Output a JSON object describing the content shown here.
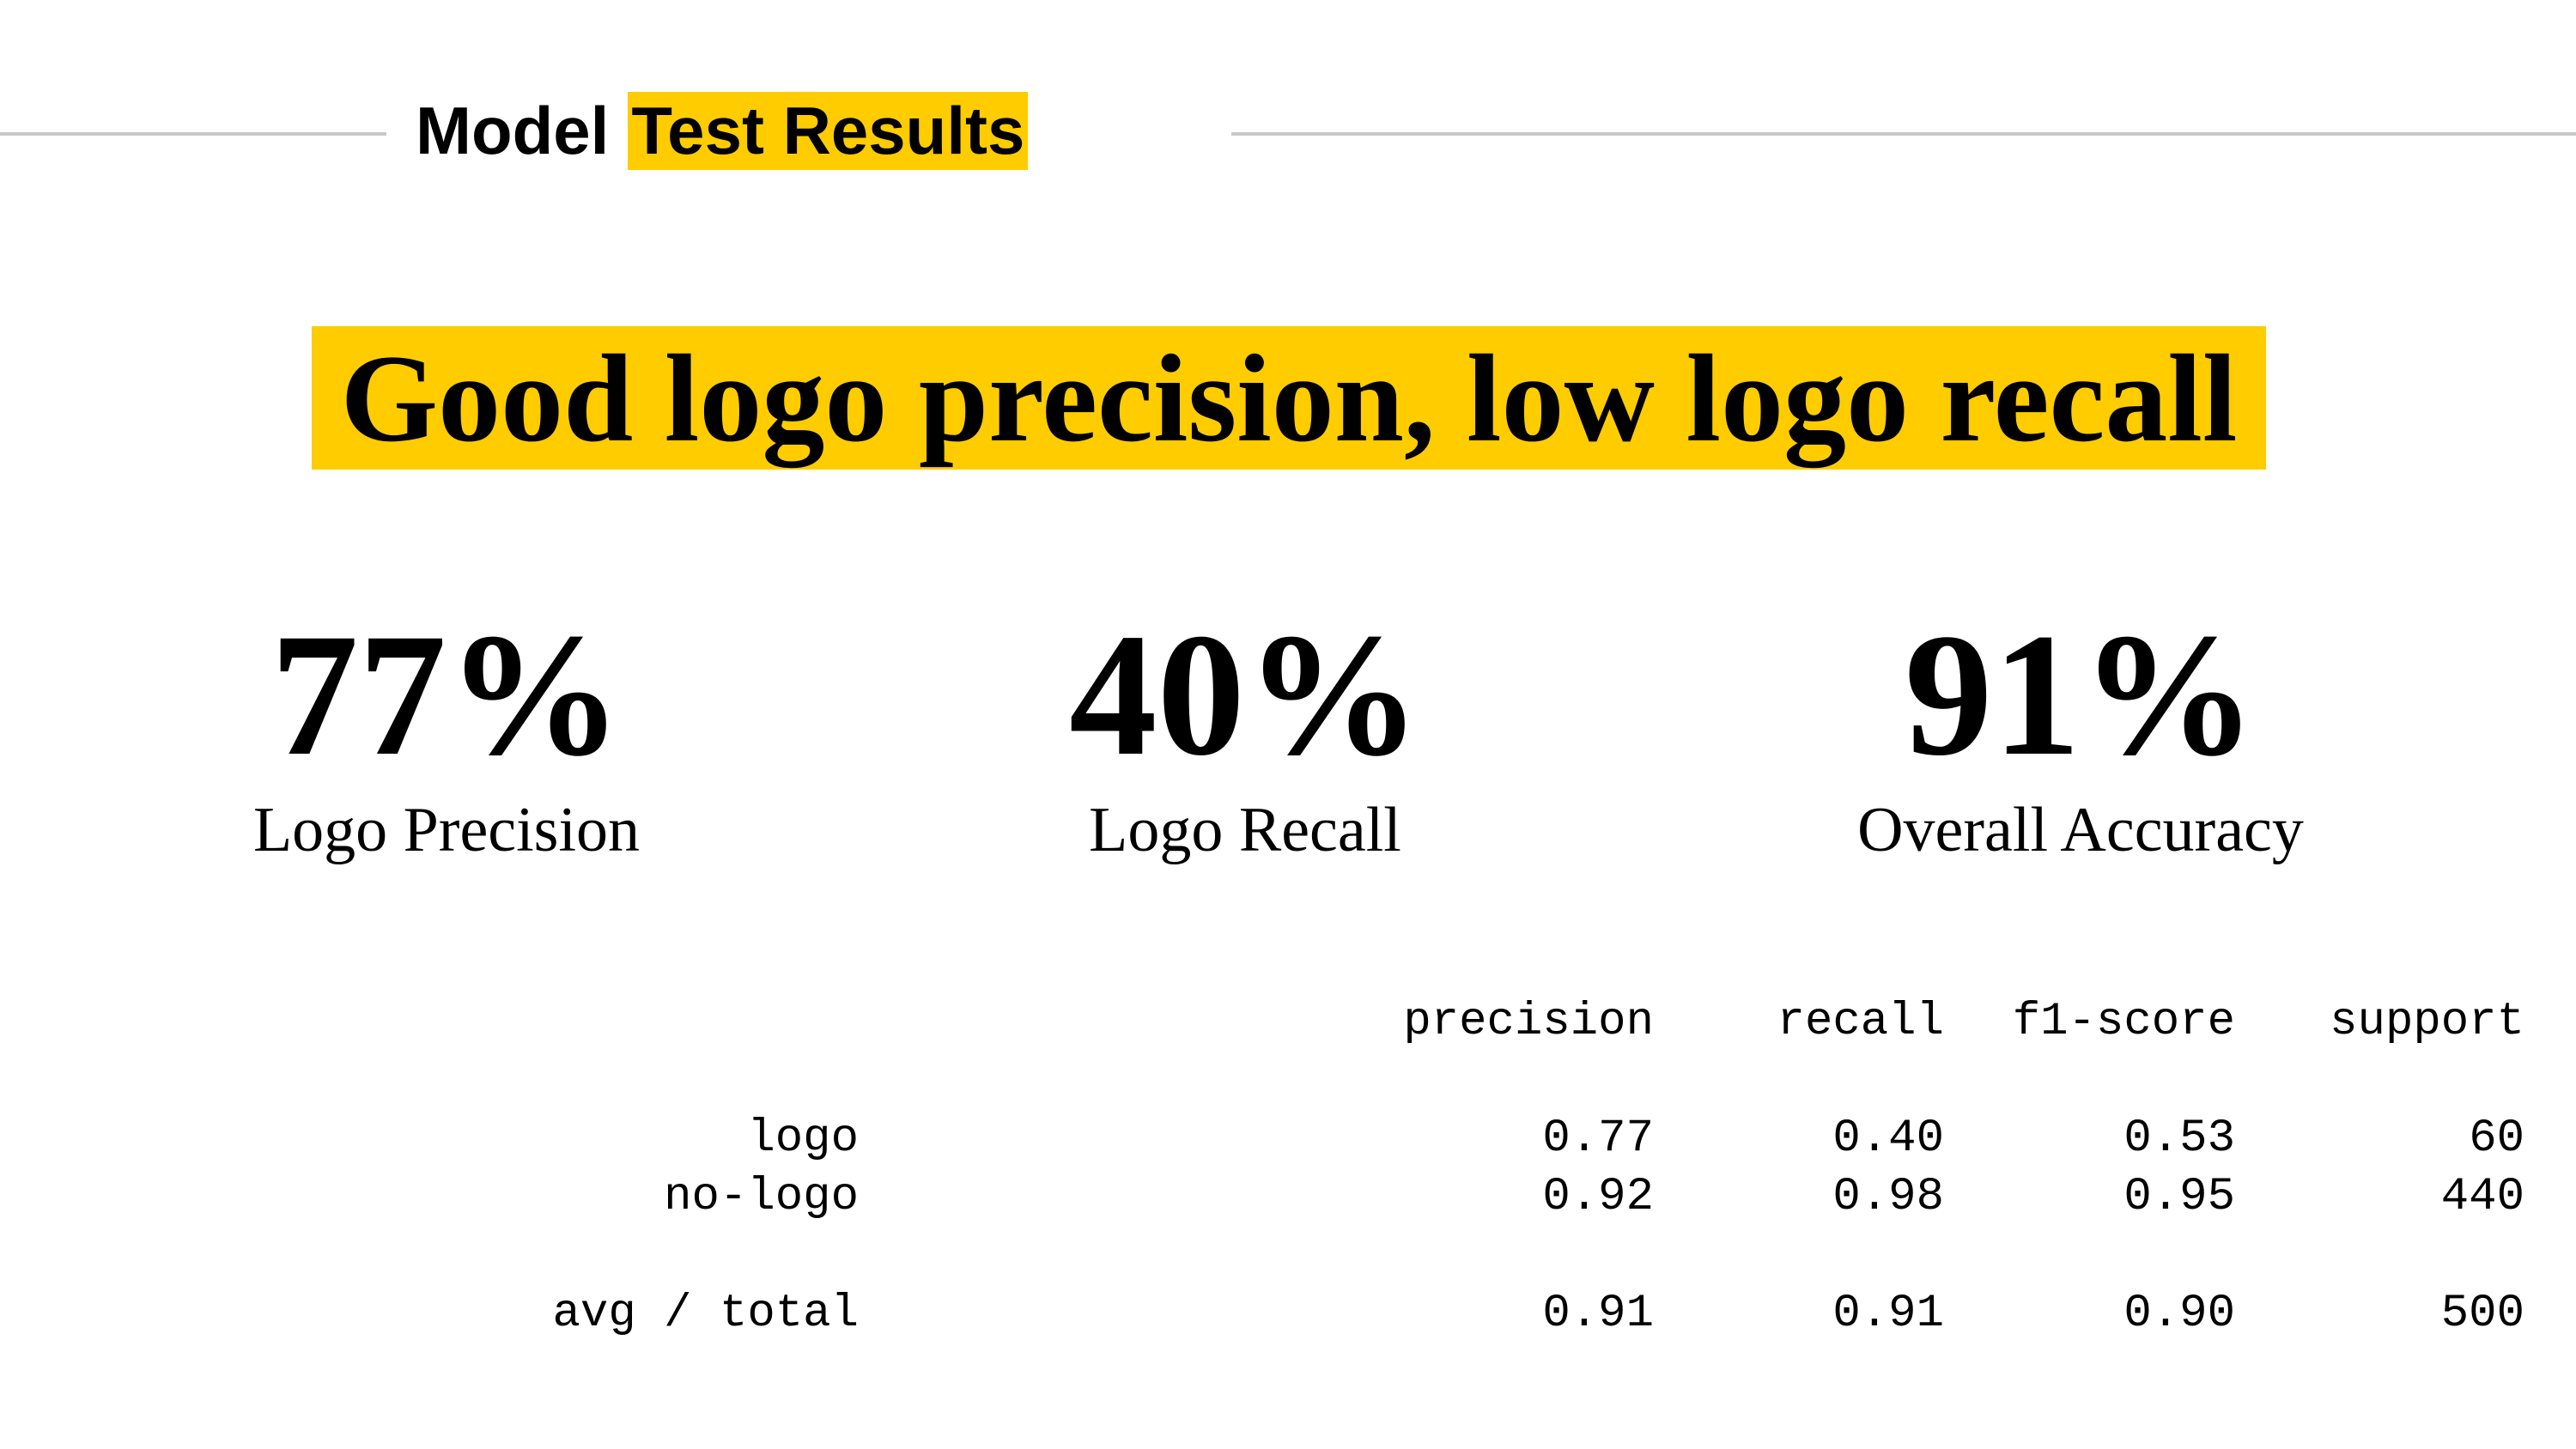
{
  "section_title": {
    "word1": "Model",
    "highlight": "Test Results"
  },
  "headline": "Good logo precision, low logo recall",
  "metrics": [
    {
      "value": "77%",
      "label": "Logo Precision"
    },
    {
      "value": "40%",
      "label": "Logo Recall"
    },
    {
      "value": "91%",
      "label": "Overall Accuracy"
    }
  ],
  "report": {
    "headers": [
      "precision",
      "recall",
      "f1-score",
      "support"
    ],
    "rows": [
      {
        "label": "logo",
        "values": [
          "0.77",
          "0.40",
          "0.53",
          "60"
        ]
      },
      {
        "label": "no-logo",
        "values": [
          "0.92",
          "0.98",
          "0.95",
          "440"
        ]
      },
      {
        "label": "avg / total",
        "values": [
          "0.91",
          "0.91",
          "0.90",
          "500"
        ]
      }
    ]
  },
  "colors": {
    "highlight": "#ffcc00",
    "rule": "#c8c8c8"
  }
}
